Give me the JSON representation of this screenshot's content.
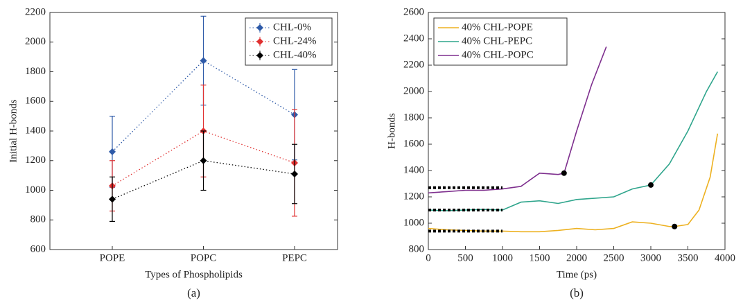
{
  "chart_data": [
    {
      "type": "errorbar",
      "caption": "(a)",
      "xlabel": "Types of Phospholipids",
      "ylabel": "Initial H-bonds",
      "categories": [
        "POPE",
        "POPC",
        "PEPC"
      ],
      "series": [
        {
          "name": "CHL-0%",
          "color": "#2e5aa8",
          "values": [
            1260,
            1875,
            1510
          ],
          "errors": [
            240,
            300,
            305
          ]
        },
        {
          "name": "CHL-24%",
          "color": "#e03030",
          "values": [
            1030,
            1400,
            1185
          ],
          "errors": [
            170,
            310,
            360
          ]
        },
        {
          "name": "CHL-40%",
          "color": "#000000",
          "values": [
            940,
            1200,
            1110
          ],
          "errors": [
            150,
            200,
            200
          ]
        }
      ],
      "ylim": [
        600,
        2200
      ],
      "yticks": [
        600,
        800,
        1000,
        1200,
        1400,
        1600,
        1800,
        2000,
        2200
      ],
      "legend": "upper right"
    },
    {
      "type": "line",
      "caption": "(b)",
      "xlabel": "Time (ps)",
      "ylabel": "H-bonds",
      "series": [
        {
          "name": "40% CHL-POPE",
          "color": "#edb120",
          "x": [
            0,
            250,
            500,
            750,
            1000,
            1250,
            1500,
            1750,
            2000,
            2250,
            2500,
            2750,
            3000,
            3250,
            3320,
            3500,
            3650,
            3800,
            3900
          ],
          "values": [
            960,
            950,
            945,
            940,
            940,
            935,
            935,
            945,
            960,
            950,
            960,
            1010,
            1000,
            975,
            975,
            990,
            1100,
            1350,
            1680
          ]
        },
        {
          "name": "40% CHL-PEPC",
          "color": "#2fa58c",
          "x": [
            0,
            250,
            500,
            750,
            1000,
            1250,
            1500,
            1750,
            2000,
            2250,
            2500,
            2750,
            3000,
            3250,
            3500,
            3750,
            3900
          ],
          "values": [
            1100,
            1095,
            1100,
            1105,
            1100,
            1160,
            1170,
            1150,
            1180,
            1190,
            1200,
            1260,
            1290,
            1450,
            1700,
            2000,
            2150
          ]
        },
        {
          "name": "40% CHL-POPC",
          "color": "#7e2f8e",
          "x": [
            0,
            250,
            500,
            750,
            1000,
            1250,
            1500,
            1750,
            1830,
            2000,
            2200,
            2400
          ],
          "values": [
            1230,
            1240,
            1250,
            1250,
            1260,
            1280,
            1380,
            1370,
            1380,
            1700,
            2050,
            2340
          ]
        }
      ],
      "markers": {
        "color": "#000000",
        "x": [
          1830,
          3000,
          3320
        ],
        "values": [
          1380,
          1290,
          975
        ]
      },
      "baselines": [
        {
          "color": "#000000",
          "x": [
            0,
            1000
          ],
          "values": [
            1270,
            1270
          ]
        },
        {
          "color": "#000000",
          "x": [
            0,
            1000
          ],
          "values": [
            1100,
            1100
          ]
        },
        {
          "color": "#000000",
          "x": [
            0,
            1000
          ],
          "values": [
            940,
            940
          ]
        }
      ],
      "xlim": [
        0,
        4000
      ],
      "xticks": [
        0,
        500,
        1000,
        1500,
        2000,
        2500,
        3000,
        3500,
        4000
      ],
      "ylim": [
        800,
        2600
      ],
      "yticks": [
        800,
        1000,
        1200,
        1400,
        1600,
        1800,
        2000,
        2200,
        2400,
        2600
      ],
      "legend": "upper left"
    }
  ]
}
